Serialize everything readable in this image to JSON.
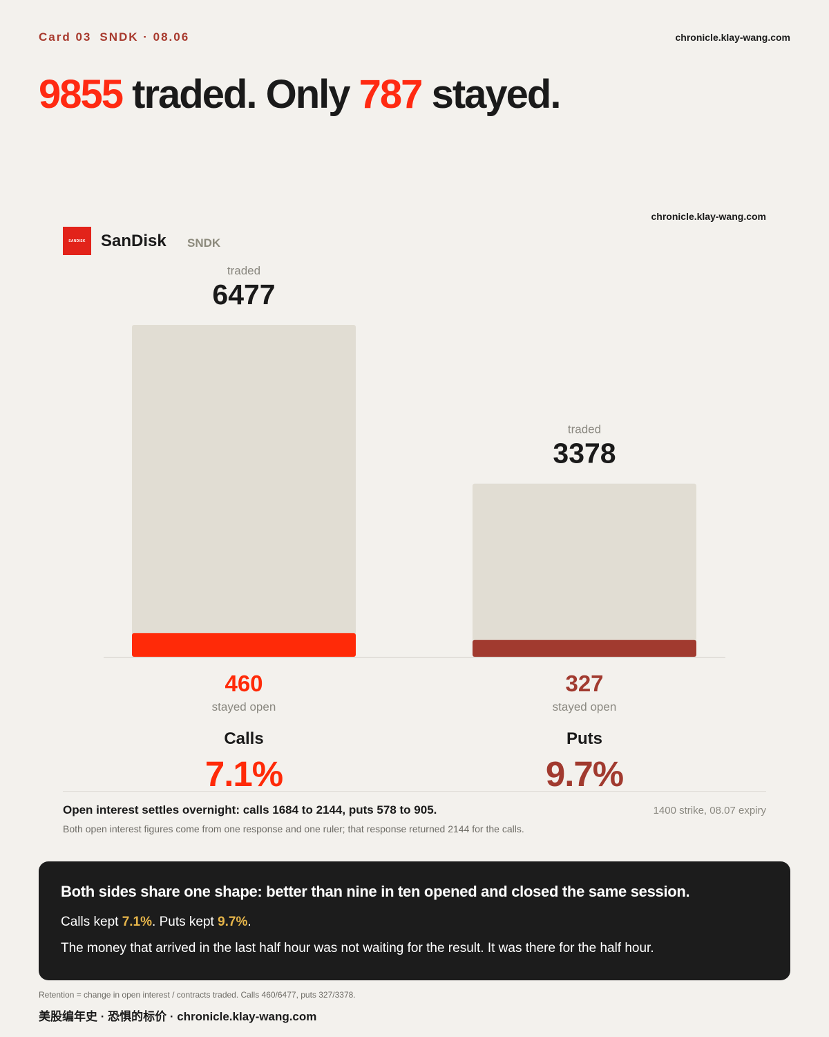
{
  "header": {
    "card": "Card 03",
    "ticker_date": "SNDK · 08.06",
    "site": "chronicle.klay-wang.com"
  },
  "headline": {
    "num1": "9855",
    "text1": " traded. Only ",
    "num2": "787",
    "text2": " stayed."
  },
  "brand": {
    "site": "chronicle.klay-wang.com",
    "logo_text": "SANDISK",
    "company": "SanDisk",
    "ticker": "SNDK"
  },
  "colors": {
    "calls": "#ff2a08",
    "puts": "#a13a2f",
    "traded_bar": "#e1ddd3",
    "gold": "#e6b54a"
  },
  "chart_data": {
    "type": "bar",
    "categories": [
      "Calls",
      "Puts"
    ],
    "traded_label": "traded",
    "stayed_label": "stayed open",
    "series": [
      {
        "name": "traded",
        "values": [
          6477,
          3378
        ]
      },
      {
        "name": "stayed open",
        "values": [
          460,
          327
        ]
      }
    ],
    "retention_pct": [
      "7.1%",
      "9.7%"
    ],
    "ylim": [
      0,
      6477
    ]
  },
  "notes": {
    "bold": "Open interest settles overnight: calls 1684 to 2144, puts 578 to 905.",
    "right": "1400 strike, 08.07 expiry",
    "small": "Both open interest figures come from one response and one ruler; that response returned 2144 for the calls."
  },
  "summary": {
    "title": "Both sides share one shape: better than nine in ten opened and closed the same session.",
    "calls_prefix": "Calls kept ",
    "calls_pct": "7.1%",
    "puts_prefix": ". Puts kept ",
    "puts_pct": "9.7%",
    "end": ".",
    "line2": "The money that arrived in the last half hour was not waiting for the result. It was there for the half hour."
  },
  "footnote": "Retention = change in open interest / contracts traded. Calls 460/6477, puts 327/3378.",
  "footer": "美股编年史 · 恐惧的标价 · chronicle.klay-wang.com"
}
